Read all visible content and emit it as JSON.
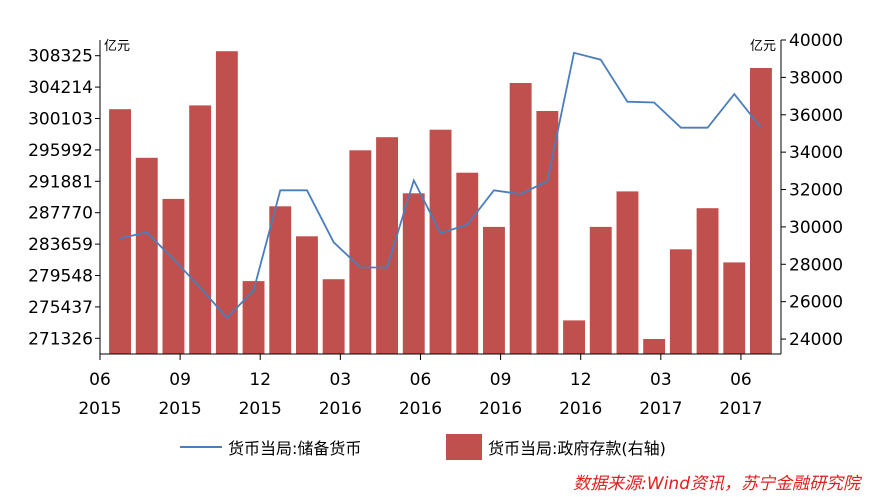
{
  "chart_data": {
    "type": "bar+line",
    "title": "",
    "left_unit": "亿元",
    "right_unit": "亿元",
    "left_axis_ticks": [
      308325,
      304214,
      300103,
      295992,
      291881,
      287770,
      283659,
      279548,
      275437,
      271326
    ],
    "left_axis_range": [
      269271,
      310380
    ],
    "right_axis_ticks": [
      40000,
      38000,
      36000,
      34000,
      32000,
      30000,
      28000,
      26000,
      24000
    ],
    "right_axis_range": [
      23200,
      40000
    ],
    "x_axis_ticks": [
      {
        "month": "06",
        "year": "2015"
      },
      {
        "month": "09",
        "year": "2015"
      },
      {
        "month": "12",
        "year": "2015"
      },
      {
        "month": "03",
        "year": "2016"
      },
      {
        "month": "06",
        "year": "2016"
      },
      {
        "month": "09",
        "year": "2016"
      },
      {
        "month": "12",
        "year": "2016"
      },
      {
        "month": "03",
        "year": "2017"
      },
      {
        "month": "06",
        "year": "2017"
      }
    ],
    "x": [
      "2015-07",
      "2015-08",
      "2015-09",
      "2015-10",
      "2015-11",
      "2015-12",
      "2016-01",
      "2016-02",
      "2016-03",
      "2016-04",
      "2016-05",
      "2016-06",
      "2016-07",
      "2016-08",
      "2016-09",
      "2016-10",
      "2016-11",
      "2016-12",
      "2017-01",
      "2017-02",
      "2017-03",
      "2017-04",
      "2017-05",
      "2017-06",
      "2017-07"
    ],
    "series": [
      {
        "name": "货币当局:储备货币",
        "axis": "left",
        "kind": "line",
        "color": "#4a7ebb",
        "values": [
          284400,
          285200,
          281700,
          278000,
          274000,
          277600,
          290700,
          290700,
          283900,
          280600,
          280600,
          292000,
          285100,
          286200,
          290700,
          290200,
          291900,
          308700,
          307800,
          302300,
          302200,
          298900,
          298900,
          303300,
          298900
        ]
      },
      {
        "name": "货币当局:政府存款(右轴)",
        "axis": "right",
        "kind": "bar",
        "color": "#c0504d",
        "values": [
          36300,
          33700,
          31500,
          36500,
          39400,
          27100,
          31100,
          29500,
          27200,
          34100,
          34800,
          31800,
          35200,
          32900,
          30000,
          37700,
          36200,
          25000,
          30000,
          31900,
          24000,
          28800,
          31000,
          28100,
          38500
        ]
      }
    ],
    "grid": false,
    "legend_position": "bottom"
  },
  "legend": {
    "line_label": "货币当局:储备货币",
    "bar_label": "货币当局:政府存款(右轴)"
  },
  "source_note": "数据来源:Wind资讯，苏宁金融研究院"
}
